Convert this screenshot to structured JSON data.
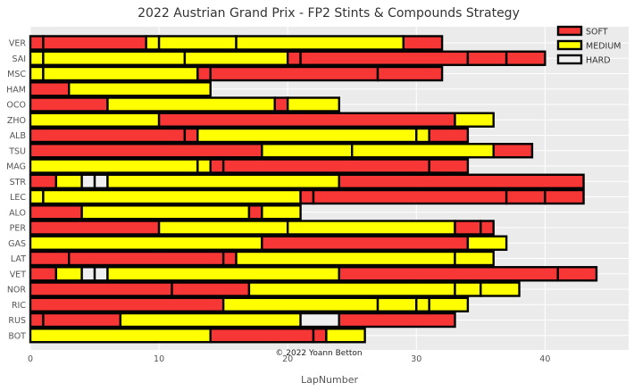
{
  "chart_data": {
    "type": "bar",
    "orientation": "horizontal-stacked",
    "title": "2022 Austrian Grand Prix - FP2 Stints & Compounds Strategy",
    "xlabel": "LapNumber",
    "ylabel": "",
    "xlim": [
      0,
      46.5
    ],
    "xticks": [
      0,
      10,
      20,
      30,
      40
    ],
    "grid": true,
    "legend_position": "top-right",
    "credit": "© 2022 Yoann Betton",
    "compounds": [
      {
        "name": "SOFT",
        "color": "#f73636"
      },
      {
        "name": "MEDIUM",
        "color": "#ffff00"
      },
      {
        "name": "HARD",
        "color": "#f0f0f0"
      }
    ],
    "drivers": [
      {
        "driver": "VER",
        "stints": [
          {
            "c": "SOFT",
            "s": 0,
            "e": 1
          },
          {
            "c": "SOFT",
            "s": 1,
            "e": 9
          },
          {
            "c": "MEDIUM",
            "s": 9,
            "e": 10
          },
          {
            "c": "MEDIUM",
            "s": 10,
            "e": 16
          },
          {
            "c": "MEDIUM",
            "s": 16,
            "e": 29
          },
          {
            "c": "SOFT",
            "s": 29,
            "e": 32
          }
        ]
      },
      {
        "driver": "SAI",
        "stints": [
          {
            "c": "MEDIUM",
            "s": 0,
            "e": 1
          },
          {
            "c": "MEDIUM",
            "s": 1,
            "e": 12
          },
          {
            "c": "MEDIUM",
            "s": 12,
            "e": 20
          },
          {
            "c": "SOFT",
            "s": 20,
            "e": 21
          },
          {
            "c": "SOFT",
            "s": 21,
            "e": 34
          },
          {
            "c": "SOFT",
            "s": 34,
            "e": 37
          },
          {
            "c": "SOFT",
            "s": 37,
            "e": 40
          }
        ]
      },
      {
        "driver": "MSC",
        "stints": [
          {
            "c": "MEDIUM",
            "s": 0,
            "e": 1
          },
          {
            "c": "MEDIUM",
            "s": 1,
            "e": 13
          },
          {
            "c": "SOFT",
            "s": 13,
            "e": 14
          },
          {
            "c": "SOFT",
            "s": 14,
            "e": 27
          },
          {
            "c": "SOFT",
            "s": 27,
            "e": 32
          }
        ]
      },
      {
        "driver": "HAM",
        "stints": [
          {
            "c": "SOFT",
            "s": 0,
            "e": 3
          },
          {
            "c": "MEDIUM",
            "s": 3,
            "e": 14
          }
        ]
      },
      {
        "driver": "OCO",
        "stints": [
          {
            "c": "SOFT",
            "s": 0,
            "e": 6
          },
          {
            "c": "MEDIUM",
            "s": 6,
            "e": 19
          },
          {
            "c": "SOFT",
            "s": 19,
            "e": 20
          },
          {
            "c": "MEDIUM",
            "s": 20,
            "e": 24
          }
        ]
      },
      {
        "driver": "ZHO",
        "stints": [
          {
            "c": "MEDIUM",
            "s": 0,
            "e": 10
          },
          {
            "c": "SOFT",
            "s": 10,
            "e": 33
          },
          {
            "c": "MEDIUM",
            "s": 33,
            "e": 36
          }
        ]
      },
      {
        "driver": "ALB",
        "stints": [
          {
            "c": "SOFT",
            "s": 0,
            "e": 12
          },
          {
            "c": "SOFT",
            "s": 12,
            "e": 13
          },
          {
            "c": "MEDIUM",
            "s": 13,
            "e": 30
          },
          {
            "c": "MEDIUM",
            "s": 30,
            "e": 31
          },
          {
            "c": "SOFT",
            "s": 31,
            "e": 34
          }
        ]
      },
      {
        "driver": "TSU",
        "stints": [
          {
            "c": "SOFT",
            "s": 0,
            "e": 18
          },
          {
            "c": "MEDIUM",
            "s": 18,
            "e": 25
          },
          {
            "c": "MEDIUM",
            "s": 25,
            "e": 36
          },
          {
            "c": "SOFT",
            "s": 36,
            "e": 39
          }
        ]
      },
      {
        "driver": "MAG",
        "stints": [
          {
            "c": "MEDIUM",
            "s": 0,
            "e": 13
          },
          {
            "c": "MEDIUM",
            "s": 13,
            "e": 14
          },
          {
            "c": "SOFT",
            "s": 14,
            "e": 15
          },
          {
            "c": "SOFT",
            "s": 15,
            "e": 31
          },
          {
            "c": "SOFT",
            "s": 31,
            "e": 34
          }
        ]
      },
      {
        "driver": "STR",
        "stints": [
          {
            "c": "SOFT",
            "s": 0,
            "e": 2
          },
          {
            "c": "MEDIUM",
            "s": 2,
            "e": 4
          },
          {
            "c": "HARD",
            "s": 4,
            "e": 5
          },
          {
            "c": "HARD",
            "s": 5,
            "e": 6
          },
          {
            "c": "MEDIUM",
            "s": 6,
            "e": 24
          },
          {
            "c": "SOFT",
            "s": 24,
            "e": 43
          }
        ]
      },
      {
        "driver": "LEC",
        "stints": [
          {
            "c": "MEDIUM",
            "s": 0,
            "e": 1
          },
          {
            "c": "MEDIUM",
            "s": 1,
            "e": 21
          },
          {
            "c": "SOFT",
            "s": 21,
            "e": 22
          },
          {
            "c": "SOFT",
            "s": 22,
            "e": 37
          },
          {
            "c": "SOFT",
            "s": 37,
            "e": 40
          },
          {
            "c": "SOFT",
            "s": 40,
            "e": 43
          }
        ]
      },
      {
        "driver": "ALO",
        "stints": [
          {
            "c": "SOFT",
            "s": 0,
            "e": 4
          },
          {
            "c": "MEDIUM",
            "s": 4,
            "e": 17
          },
          {
            "c": "SOFT",
            "s": 17,
            "e": 18
          },
          {
            "c": "MEDIUM",
            "s": 18,
            "e": 21
          }
        ]
      },
      {
        "driver": "PER",
        "stints": [
          {
            "c": "SOFT",
            "s": 0,
            "e": 10
          },
          {
            "c": "MEDIUM",
            "s": 10,
            "e": 20
          },
          {
            "c": "MEDIUM",
            "s": 20,
            "e": 33
          },
          {
            "c": "SOFT",
            "s": 33,
            "e": 35
          },
          {
            "c": "SOFT",
            "s": 35,
            "e": 36
          }
        ]
      },
      {
        "driver": "GAS",
        "stints": [
          {
            "c": "MEDIUM",
            "s": 0,
            "e": 18
          },
          {
            "c": "SOFT",
            "s": 18,
            "e": 34
          },
          {
            "c": "MEDIUM",
            "s": 34,
            "e": 37
          }
        ]
      },
      {
        "driver": "LAT",
        "stints": [
          {
            "c": "SOFT",
            "s": 0,
            "e": 3
          },
          {
            "c": "SOFT",
            "s": 3,
            "e": 15
          },
          {
            "c": "SOFT",
            "s": 15,
            "e": 16
          },
          {
            "c": "MEDIUM",
            "s": 16,
            "e": 33
          },
          {
            "c": "MEDIUM",
            "s": 33,
            "e": 36
          }
        ]
      },
      {
        "driver": "VET",
        "stints": [
          {
            "c": "SOFT",
            "s": 0,
            "e": 2
          },
          {
            "c": "MEDIUM",
            "s": 2,
            "e": 4
          },
          {
            "c": "HARD",
            "s": 4,
            "e": 5
          },
          {
            "c": "HARD",
            "s": 5,
            "e": 6
          },
          {
            "c": "MEDIUM",
            "s": 6,
            "e": 24
          },
          {
            "c": "SOFT",
            "s": 24,
            "e": 41
          },
          {
            "c": "SOFT",
            "s": 41,
            "e": 44
          }
        ]
      },
      {
        "driver": "NOR",
        "stints": [
          {
            "c": "SOFT",
            "s": 0,
            "e": 11
          },
          {
            "c": "SOFT",
            "s": 11,
            "e": 17
          },
          {
            "c": "MEDIUM",
            "s": 17,
            "e": 33
          },
          {
            "c": "MEDIUM",
            "s": 33,
            "e": 35
          },
          {
            "c": "MEDIUM",
            "s": 35,
            "e": 38
          }
        ]
      },
      {
        "driver": "RIC",
        "stints": [
          {
            "c": "SOFT",
            "s": 0,
            "e": 15
          },
          {
            "c": "MEDIUM",
            "s": 15,
            "e": 27
          },
          {
            "c": "MEDIUM",
            "s": 27,
            "e": 30
          },
          {
            "c": "MEDIUM",
            "s": 30,
            "e": 31
          },
          {
            "c": "MEDIUM",
            "s": 31,
            "e": 34
          }
        ]
      },
      {
        "driver": "RUS",
        "stints": [
          {
            "c": "SOFT",
            "s": 0,
            "e": 1
          },
          {
            "c": "SOFT",
            "s": 1,
            "e": 7
          },
          {
            "c": "MEDIUM",
            "s": 7,
            "e": 21
          },
          {
            "c": "HARD",
            "s": 21,
            "e": 24
          },
          {
            "c": "SOFT",
            "s": 24,
            "e": 33
          }
        ]
      },
      {
        "driver": "BOT",
        "stints": [
          {
            "c": "MEDIUM",
            "s": 0,
            "e": 14
          },
          {
            "c": "SOFT",
            "s": 14,
            "e": 22
          },
          {
            "c": "SOFT",
            "s": 22,
            "e": 23
          },
          {
            "c": "MEDIUM",
            "s": 23,
            "e": 26
          }
        ]
      }
    ]
  }
}
